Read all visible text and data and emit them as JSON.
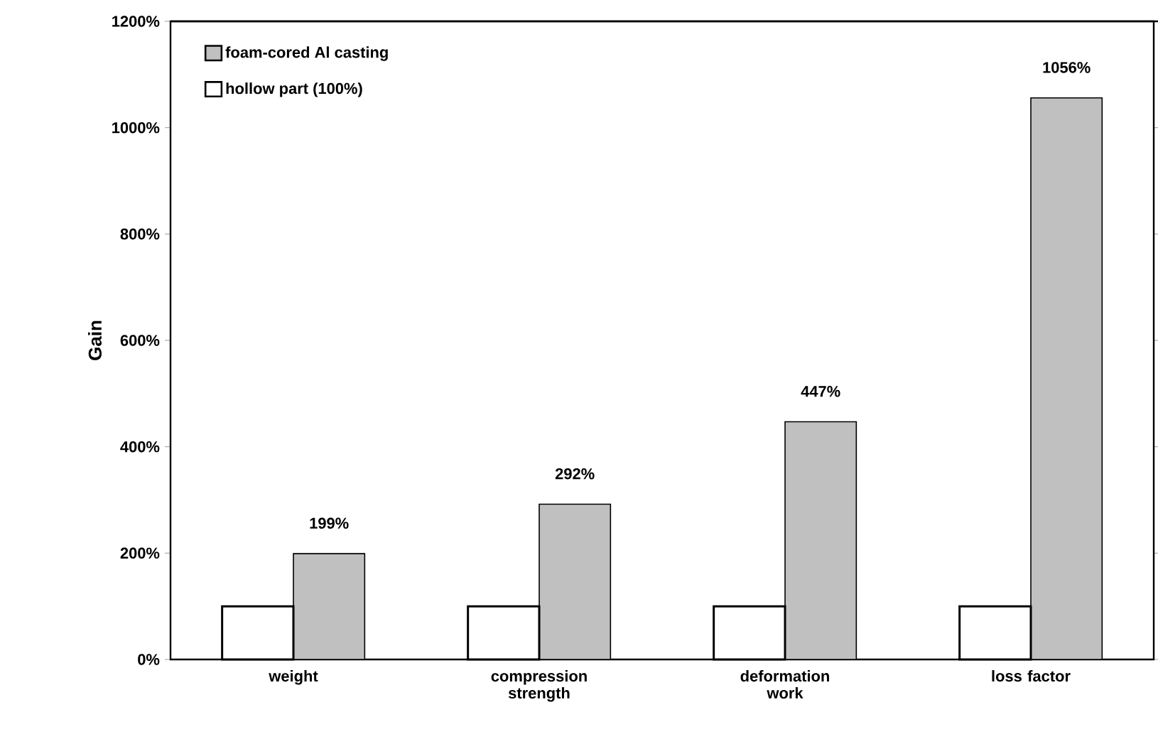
{
  "chart_data": {
    "type": "bar",
    "ylabel": "Gain",
    "categories": [
      "weight",
      "compression strength",
      "deformation work",
      "loss factor"
    ],
    "series": [
      {
        "name": "foam-cored Al casting",
        "color": "#c0c0c0",
        "values": [
          199,
          292,
          447,
          1056
        ],
        "value_labels": [
          "199%",
          "292%",
          "447%",
          "1056%"
        ]
      },
      {
        "name": "hollow part (100%)",
        "color": "#ffffff",
        "values": [
          100,
          100,
          100,
          100
        ]
      }
    ],
    "ylim": [
      0,
      1200
    ],
    "yticks": [
      {
        "value": 0,
        "label": "0%"
      },
      {
        "value": 200,
        "label": "200%"
      },
      {
        "value": 400,
        "label": "400%"
      },
      {
        "value": 600,
        "label": "600%"
      },
      {
        "value": 800,
        "label": "800%"
      },
      {
        "value": 1000,
        "label": "1000%"
      },
      {
        "value": 1200,
        "label": "1200%"
      }
    ],
    "legend": "top left",
    "grid": false
  }
}
